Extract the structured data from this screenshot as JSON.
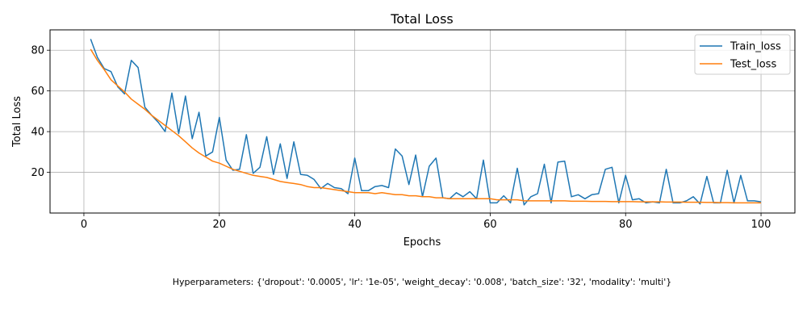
{
  "chart_data": {
    "type": "line",
    "title": "Total Loss",
    "xlabel": "Epochs",
    "ylabel": "Total Loss",
    "xlim": [
      -5,
      105
    ],
    "ylim": [
      0,
      90
    ],
    "xticks": [
      0,
      20,
      40,
      60,
      80,
      100
    ],
    "yticks": [
      20,
      40,
      60,
      80
    ],
    "grid": true,
    "legend_position": "top-right",
    "x": [
      1,
      2,
      3,
      4,
      5,
      6,
      7,
      8,
      9,
      10,
      11,
      12,
      13,
      14,
      15,
      16,
      17,
      18,
      19,
      20,
      21,
      22,
      23,
      24,
      25,
      26,
      27,
      28,
      29,
      30,
      31,
      32,
      33,
      34,
      35,
      36,
      37,
      38,
      39,
      40,
      41,
      42,
      43,
      44,
      45,
      46,
      47,
      48,
      49,
      50,
      51,
      52,
      53,
      54,
      55,
      56,
      57,
      58,
      59,
      60,
      61,
      62,
      63,
      64,
      65,
      66,
      67,
      68,
      69,
      70,
      71,
      72,
      73,
      74,
      75,
      76,
      77,
      78,
      79,
      80,
      81,
      82,
      83,
      84,
      85,
      86,
      87,
      88,
      89,
      90,
      91,
      92,
      93,
      94,
      95,
      96,
      97,
      98,
      99,
      100
    ],
    "series": [
      {
        "name": "Train_loss",
        "color": "#1f77b4",
        "values": [
          85.5,
          76.5,
          71,
          69.5,
          62,
          58.5,
          75,
          71.5,
          52,
          48,
          44.5,
          40,
          59,
          39,
          57.5,
          36.5,
          49.5,
          28,
          30,
          47,
          26,
          21,
          21.5,
          38.5,
          19.5,
          22.5,
          37.5,
          19,
          34,
          17,
          35,
          19,
          18.5,
          16.5,
          12,
          14.5,
          12.5,
          12,
          9.5,
          27,
          11,
          11,
          13,
          13.5,
          12.5,
          31.5,
          28,
          14,
          28.5,
          8,
          23,
          27,
          7.5,
          7,
          10,
          8,
          10.5,
          7,
          26,
          5,
          5,
          8.5,
          5,
          22,
          4,
          8,
          9.5,
          24,
          5,
          25,
          25.5,
          8,
          9,
          7,
          9,
          9.5,
          21.5,
          22.5,
          5,
          18.5,
          6.5,
          7,
          5,
          5.5,
          5,
          21.5,
          5,
          5,
          6,
          8,
          4.5,
          18,
          5,
          5,
          21,
          5,
          18.5,
          6,
          6,
          5.5
        ]
      },
      {
        "name": "Test_loss",
        "color": "#ff7f0e",
        "values": [
          80.5,
          75,
          70.5,
          65.5,
          62.5,
          59.5,
          56,
          53.5,
          51,
          48,
          45.5,
          43,
          40.5,
          38,
          35,
          32,
          29.5,
          27.5,
          25.5,
          24.5,
          23,
          21.5,
          20.5,
          19.5,
          18.5,
          18,
          17.5,
          16.5,
          15.5,
          15,
          14.5,
          14,
          13,
          12.5,
          12.5,
          12,
          11.5,
          11,
          10.5,
          10,
          10,
          10,
          9.5,
          10,
          9.5,
          9,
          9,
          8.5,
          8.5,
          8,
          8,
          7.5,
          7.5,
          7,
          7,
          7,
          7,
          7,
          7,
          7,
          6.5,
          6.5,
          6.5,
          6.5,
          6,
          6,
          6,
          6,
          6,
          6,
          6,
          5.8,
          5.8,
          5.8,
          5.7,
          5.7,
          5.7,
          5.6,
          5.6,
          5.6,
          5.6,
          5.5,
          5.5,
          5.5,
          5.5,
          5.4,
          5.4,
          5.4,
          5.3,
          5.3,
          5.3,
          5.2,
          5.2,
          5.1,
          5.1,
          5,
          5,
          5,
          5,
          5
        ]
      }
    ]
  },
  "footer_text": "Hyperparameters: {'dropout': '0.0005', 'lr': '1e-05', 'weight_decay': '0.008', 'batch_size': '32', 'modality': 'multi'}"
}
